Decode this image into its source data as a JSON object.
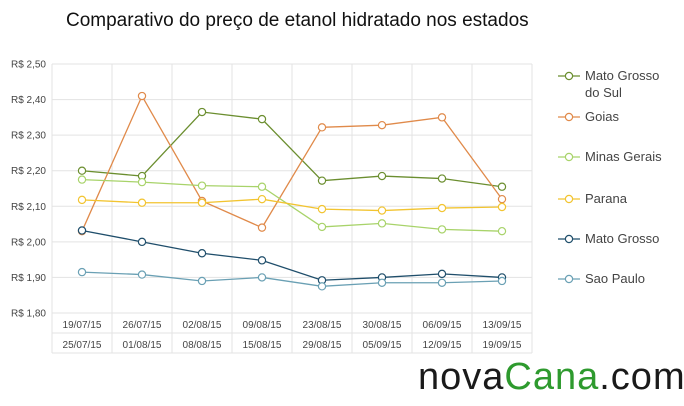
{
  "title": "Comparativo do preço de etanol hidratado nos estados",
  "brand": {
    "part1": "nova",
    "part2": "Cana",
    "part3": ".com"
  },
  "chart_data": {
    "type": "line",
    "title": "Comparativo do preço de etanol hidratado nos estados",
    "xlabel": "",
    "ylabel": "",
    "categories": [
      [
        "19/07/15",
        "25/07/15"
      ],
      [
        "26/07/15",
        "01/08/15"
      ],
      [
        "02/08/15",
        "08/08/15"
      ],
      [
        "09/08/15",
        "15/08/15"
      ],
      [
        "23/08/15",
        "29/08/15"
      ],
      [
        "30/08/15",
        "05/09/15"
      ],
      [
        "06/09/15",
        "12/09/15"
      ],
      [
        "13/09/15",
        "19/09/15"
      ]
    ],
    "ylim": [
      1.8,
      2.5
    ],
    "yticks": [
      {
        "value": 2.5,
        "label": "R$ 2,50"
      },
      {
        "value": 2.4,
        "label": "R$ 2,40"
      },
      {
        "value": 2.3,
        "label": "R$ 2,30"
      },
      {
        "value": 2.2,
        "label": "R$ 2,20"
      },
      {
        "value": 2.1,
        "label": "R$ 2,10"
      },
      {
        "value": 2.0,
        "label": "R$ 2,00"
      },
      {
        "value": 1.9,
        "label": "R$ 1,90"
      },
      {
        "value": 1.8,
        "label": "R$ 1,80"
      }
    ],
    "grid": true,
    "legend_position": "right",
    "series": [
      {
        "name": "Mato Grosso do Sul",
        "label_lines": [
          "Mato Grosso",
          "do Sul"
        ],
        "color": "#6b8e2f",
        "values": [
          2.2,
          2.185,
          2.365,
          2.345,
          2.172,
          2.185,
          2.178,
          2.155
        ]
      },
      {
        "name": "Goias",
        "label_lines": [
          "Goias"
        ],
        "color": "#e08a4a",
        "values": [
          2.03,
          2.41,
          2.115,
          2.04,
          2.322,
          2.328,
          2.35,
          2.12
        ]
      },
      {
        "name": "Minas Gerais",
        "label_lines": [
          "Minas Gerais"
        ],
        "color": "#a8d36a",
        "values": [
          2.175,
          2.168,
          2.158,
          2.155,
          2.042,
          2.052,
          2.035,
          2.03
        ]
      },
      {
        "name": "Parana",
        "label_lines": [
          "Parana"
        ],
        "color": "#f2c430",
        "values": [
          2.118,
          2.11,
          2.11,
          2.12,
          2.092,
          2.088,
          2.095,
          2.098
        ]
      },
      {
        "name": "Mato Grosso",
        "label_lines": [
          "Mato Grosso"
        ],
        "color": "#1f4e6b",
        "values": [
          2.032,
          2.0,
          1.968,
          1.948,
          1.892,
          1.9,
          1.91,
          1.9
        ]
      },
      {
        "name": "Sao Paulo",
        "label_lines": [
          "Sao Paulo"
        ],
        "color": "#6aa0b4",
        "values": [
          1.915,
          1.908,
          1.89,
          1.9,
          1.875,
          1.885,
          1.885,
          1.89
        ]
      }
    ]
  }
}
